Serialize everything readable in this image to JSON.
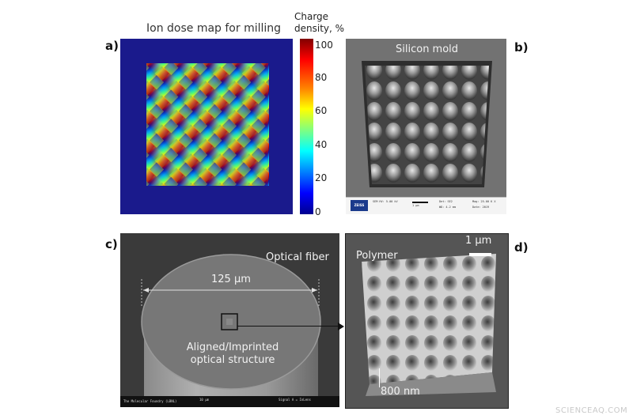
{
  "panels": {
    "a": {
      "letter": "a)",
      "title": "Ion dose map for milling",
      "colorbar": {
        "title_line1": "Charge",
        "title_line2": "density, %",
        "ticks": [
          "100",
          "80",
          "60",
          "40",
          "20",
          "0"
        ]
      }
    },
    "b": {
      "letter": "b)",
      "label": "Silicon mold",
      "databar": {
        "brand": "ZEISS",
        "cells": [
          "SEM HV: 5.00 kV",
          "1 µm",
          "Det: SE2",
          "WD: 4.2 mm",
          "Mag: 25.00 K X",
          "Date: 2019"
        ]
      }
    },
    "c": {
      "letter": "c)",
      "label": "Optical fiber",
      "diameter": "125 µm",
      "struct_line1": "Aligned/Imprinted",
      "struct_line2": "optical structure",
      "databar": {
        "left": "The Molecular Foundry (LBNL)",
        "mid": "10 µm",
        "right": "Signal A = InLens"
      }
    },
    "d": {
      "letter": "d)",
      "label": "Polymer",
      "scale": "1 µm",
      "height": "800 nm"
    }
  },
  "watermark": "SCIENCEAQ.COM",
  "colors": {
    "map_background": "#1a1a8c",
    "sem_gray": "#6b6b6b",
    "text_white": "#f2f2f2"
  }
}
